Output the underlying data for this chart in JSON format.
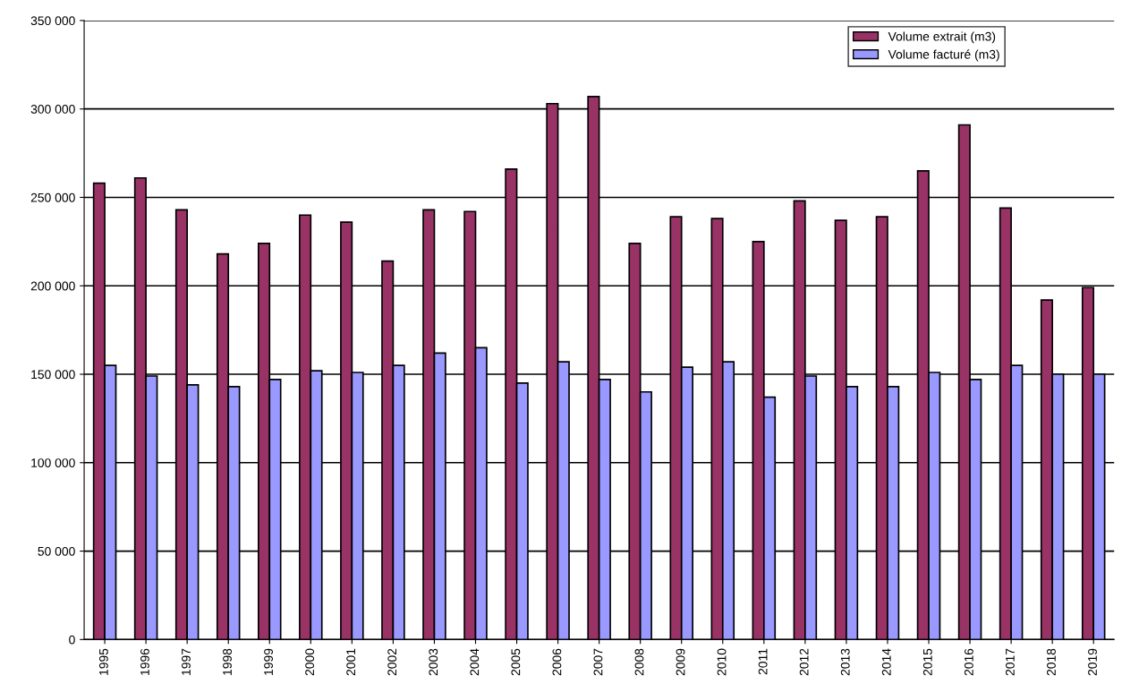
{
  "chart_data": {
    "type": "bar",
    "categories": [
      "1995",
      "1996",
      "1997",
      "1998",
      "1999",
      "2000",
      "2001",
      "2002",
      "2003",
      "2004",
      "2005",
      "2006",
      "2007",
      "2008",
      "2009",
      "2010",
      "2011",
      "2012",
      "2013",
      "2014",
      "2015",
      "2016",
      "2017",
      "2018",
      "2019"
    ],
    "series": [
      {
        "name": "Volume extrait (m3)",
        "color": "#993366",
        "values": [
          258000,
          261000,
          243000,
          218000,
          224000,
          240000,
          236000,
          214000,
          243000,
          242000,
          266000,
          303000,
          307000,
          224000,
          239000,
          238000,
          225000,
          248000,
          237000,
          239000,
          265000,
          291000,
          244000,
          192000,
          199000
        ]
      },
      {
        "name": "Volume facturé (m3)",
        "color": "#9999ff",
        "values": [
          155000,
          149000,
          144000,
          143000,
          147000,
          152000,
          151000,
          155000,
          162000,
          165000,
          145000,
          157000,
          147000,
          140000,
          154000,
          157000,
          137000,
          149000,
          143000,
          143000,
          151000,
          147000,
          155000,
          150000,
          150000
        ]
      }
    ],
    "ylim": [
      0,
      350000
    ],
    "yticks": [
      0,
      {
        "value": 50000,
        "label": "50 000"
      },
      {
        "value": 100000,
        "label": "100 000"
      },
      {
        "value": 150000,
        "label": "150 000"
      },
      {
        "value": 200000,
        "label": "200 000"
      },
      {
        "value": 250000,
        "label": "250 000"
      },
      {
        "value": 300000,
        "label": "300 000"
      },
      {
        "value": 350000,
        "label": "350 000"
      }
    ],
    "grid": "y",
    "legend": "top right"
  }
}
